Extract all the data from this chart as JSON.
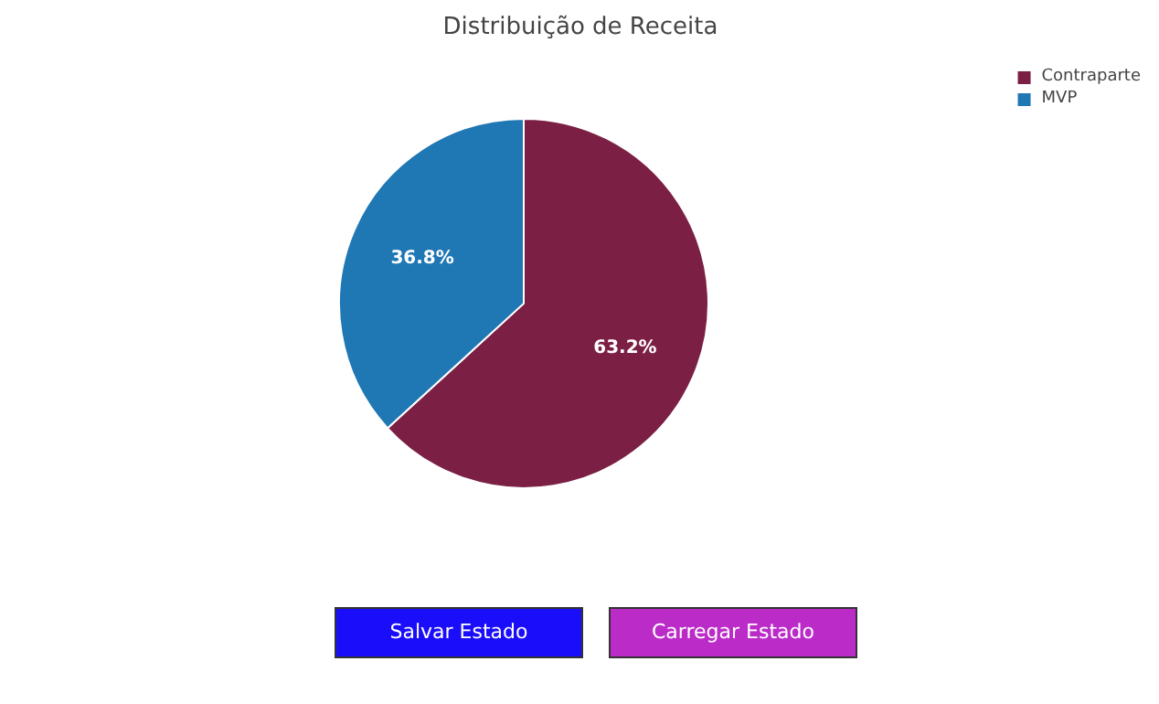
{
  "chart_data": {
    "type": "pie",
    "title": "Distribuição de Receita",
    "categories": [
      "Contraparte",
      "MVP"
    ],
    "values": [
      63.2,
      36.8
    ],
    "value_labels": [
      "63.2%",
      "36.8%"
    ],
    "colors": [
      "#7b2044",
      "#1f77b4"
    ],
    "legend": "top right",
    "annotations": [
      "Salvar Estado",
      "Carregar Estado"
    ]
  }
}
